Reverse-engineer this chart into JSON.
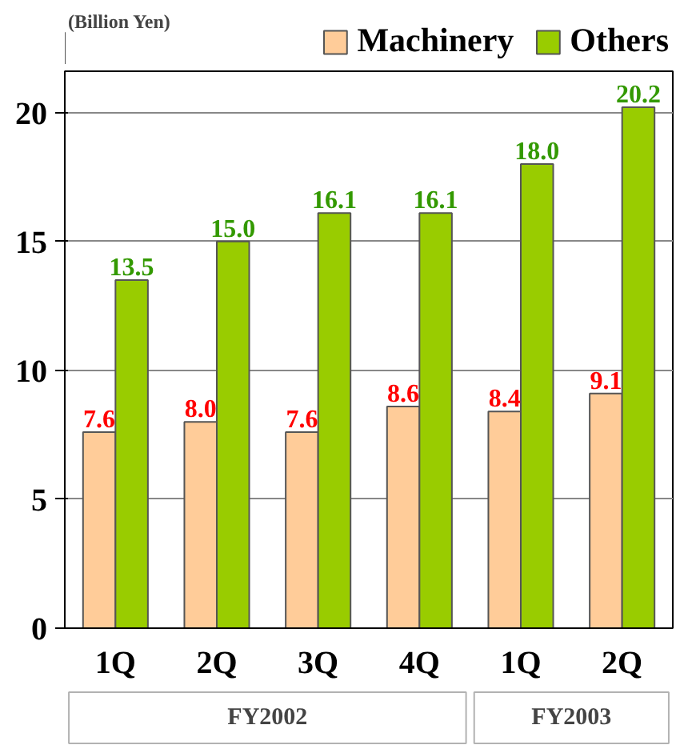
{
  "chart_data": {
    "type": "bar",
    "ylabel": "(Billion Yen)",
    "categories": [
      "1Q",
      "2Q",
      "3Q",
      "4Q",
      "1Q",
      "2Q"
    ],
    "series": [
      {
        "name": "Machinery",
        "color": "#ffcc99",
        "values": [
          7.6,
          8.0,
          7.6,
          8.6,
          8.4,
          9.1
        ],
        "value_labels": [
          "7.6",
          "8.0",
          "7.6",
          "8.6",
          "8.4",
          "9.1"
        ]
      },
      {
        "name": "Others",
        "color": "#99cc00",
        "values": [
          13.5,
          15.0,
          16.1,
          16.1,
          18.0,
          20.2
        ],
        "value_labels": [
          "13.5",
          "15.0",
          "16.1",
          "16.1",
          "18.0",
          "20.2"
        ]
      }
    ],
    "ylim": [
      0,
      21.6
    ],
    "yticks": [
      0,
      5,
      10,
      15,
      20
    ],
    "grid": "y",
    "legend": "top",
    "annotations": [
      "FY2002",
      "FY2003"
    ]
  }
}
